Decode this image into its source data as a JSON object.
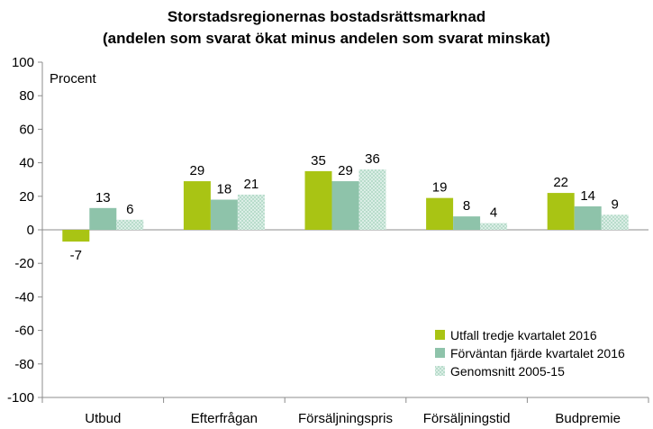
{
  "chart_data": {
    "type": "bar",
    "title": "Storstadsregionernas bostadsrättsmarknad",
    "subtitle": "(andelen som svarat ökat minus andelen som svarat minskat)",
    "ylabel": "Procent",
    "ylim": [
      -100,
      100
    ],
    "yticks": [
      -100,
      -80,
      -60,
      -40,
      -20,
      0,
      20,
      40,
      60,
      80,
      100
    ],
    "categories": [
      "Utbud",
      "Efterfrågan",
      "Försäljningspris",
      "Försäljningstid",
      "Budpremie"
    ],
    "series": [
      {
        "name": "Utfall tredje kvartalet 2016",
        "values": [
          -7,
          29,
          35,
          19,
          22
        ],
        "color": "#a9c414",
        "pattern": "solid"
      },
      {
        "name": "Förväntan fjärde kvartalet 2016",
        "values": [
          13,
          18,
          29,
          8,
          14
        ],
        "color": "#8ec3aa",
        "pattern": "solid"
      },
      {
        "name": "Genomsnitt 2005-15",
        "values": [
          6,
          21,
          36,
          4,
          9
        ],
        "color": "#cfe6dc",
        "pattern": "dotted"
      }
    ],
    "legend_position": "bottom-right",
    "grid": false,
    "data_labels": true
  }
}
